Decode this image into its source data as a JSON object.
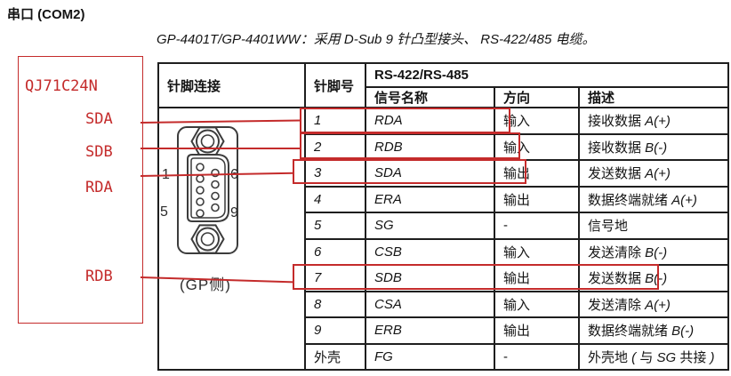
{
  "page": {
    "title": "串口 (COM2)",
    "subtitle": "GP-4401T/GP-4401WW：采用 D-Sub 9 针凸型接头、 RS-422/485 电缆。"
  },
  "annotation": {
    "device_label": "QJ71C24N",
    "signals": [
      "SDA",
      "SDB",
      "RDA",
      "RDB"
    ],
    "accent_color": "#c42b2b"
  },
  "connector": {
    "pin_top_left": "1",
    "pin_top_right": "6",
    "pin_bottom_left": "5",
    "pin_bottom_right": "9",
    "caption": "(GP侧)"
  },
  "table": {
    "col1_header": "针脚连接",
    "col2_header": "针脚号",
    "group_header": "RS-422/RS-485",
    "sub_headers": [
      "信号名称",
      "方向",
      "描述"
    ],
    "rows": [
      {
        "pin": "1",
        "signal": "RDA",
        "dir": "输入",
        "desc": "接收数据 A(+)",
        "highlight": true
      },
      {
        "pin": "2",
        "signal": "RDB",
        "dir": "输入",
        "desc": "接收数据 B(-)",
        "highlight": true
      },
      {
        "pin": "3",
        "signal": "SDA",
        "dir": "输出",
        "desc": "发送数据 A(+)",
        "highlight": true
      },
      {
        "pin": "4",
        "signal": "ERA",
        "dir": "输出",
        "desc": "数据终端就绪 A(+)",
        "highlight": false
      },
      {
        "pin": "5",
        "signal": "SG",
        "dir": "-",
        "desc": "信号地",
        "highlight": false
      },
      {
        "pin": "6",
        "signal": "CSB",
        "dir": "输入",
        "desc": "发送清除 B(-)",
        "highlight": false
      },
      {
        "pin": "7",
        "signal": "SDB",
        "dir": "输出",
        "desc": "发送数据 B(-)",
        "highlight": true
      },
      {
        "pin": "8",
        "signal": "CSA",
        "dir": "输入",
        "desc": "发送清除 A(+)",
        "highlight": false
      },
      {
        "pin": "9",
        "signal": "ERB",
        "dir": "输出",
        "desc": "数据终端就绪 B(-)",
        "highlight": false
      },
      {
        "pin": "外壳",
        "signal": "FG",
        "dir": "-",
        "desc": "外壳地 ( 与 SG 共接 )",
        "highlight": false
      }
    ]
  }
}
